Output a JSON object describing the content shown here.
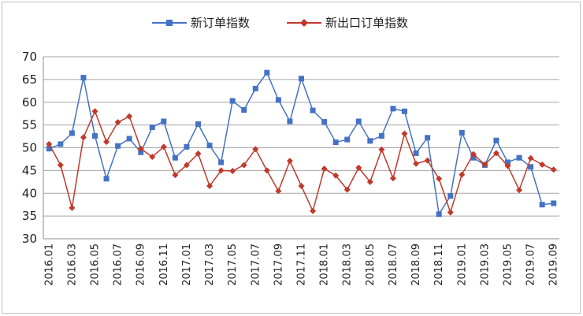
{
  "chart_data": {
    "type": "line",
    "title": "",
    "xlabel": "",
    "ylabel": "",
    "ylim": [
      30,
      70
    ],
    "yticks": [
      30,
      35,
      40,
      45,
      50,
      55,
      60,
      65,
      70
    ],
    "grid": "horizontal",
    "legend_position": "top",
    "x": [
      "2016.01",
      "2016.02",
      "2016.03",
      "2016.04",
      "2016.05",
      "2016.06",
      "2016.07",
      "2016.08",
      "2016.09",
      "2016.10",
      "2016.11",
      "2016.12",
      "2017.01",
      "2017.02",
      "2017.03",
      "2017.04",
      "2017.05",
      "2017.06",
      "2017.07",
      "2017.08",
      "2017.09",
      "2017.10",
      "2017.11",
      "2017.12",
      "2018.01",
      "2018.02",
      "2018.03",
      "2018.04",
      "2018.05",
      "2018.06",
      "2018.07",
      "2018.08",
      "2018.09",
      "2018.10",
      "2018.11",
      "2018.12",
      "2019.01",
      "2019.02",
      "2019.03",
      "2019.04",
      "2019.05",
      "2019.06",
      "2019.07",
      "2019.08",
      "2019.09"
    ],
    "x_tick_labels": [
      "2016.01",
      "2016.03",
      "2016.05",
      "2016.07",
      "2016.09",
      "2016.11",
      "2017.01",
      "2017.03",
      "2017.05",
      "2017.07",
      "2017.09",
      "2017.11",
      "2018.01",
      "2018.03",
      "2018.05",
      "2018.07",
      "2018.09",
      "2018.11",
      "2019.01",
      "2019.03",
      "2019.05",
      "2019.07",
      "2019.09"
    ],
    "series": [
      {
        "name": "新订单指数",
        "color": "#4472c4",
        "marker": "square",
        "values": [
          49.8,
          50.8,
          53.2,
          65.4,
          52.6,
          43.2,
          50.4,
          52.0,
          49.0,
          54.5,
          55.8,
          47.8,
          50.2,
          55.2,
          50.5,
          46.8,
          60.3,
          58.3,
          63.0,
          66.5,
          60.5,
          55.8,
          65.2,
          58.2,
          55.7,
          51.2,
          51.8,
          55.8,
          51.5,
          52.6,
          58.6,
          58.0,
          48.8,
          52.2,
          35.4,
          39.4,
          53.3,
          47.8,
          46.2,
          51.6,
          46.8,
          47.8,
          45.8,
          37.5,
          37.8
        ]
      },
      {
        "name": "新出口订单指数",
        "color": "#c0392b",
        "marker": "diamond",
        "values": [
          50.8,
          46.2,
          36.8,
          52.3,
          58.0,
          51.3,
          55.6,
          56.9,
          49.8,
          48.0,
          50.2,
          44.0,
          46.2,
          48.7,
          41.6,
          45.0,
          44.9,
          46.2,
          49.7,
          45.0,
          40.5,
          47.1,
          41.6,
          36.1,
          45.4,
          43.9,
          40.8,
          45.6,
          42.5,
          49.6,
          43.3,
          53.1,
          46.5,
          47.2,
          43.2,
          35.8,
          44.1,
          48.6,
          46.3,
          48.8,
          46.0,
          40.7,
          47.7,
          46.3,
          45.2
        ]
      }
    ]
  }
}
